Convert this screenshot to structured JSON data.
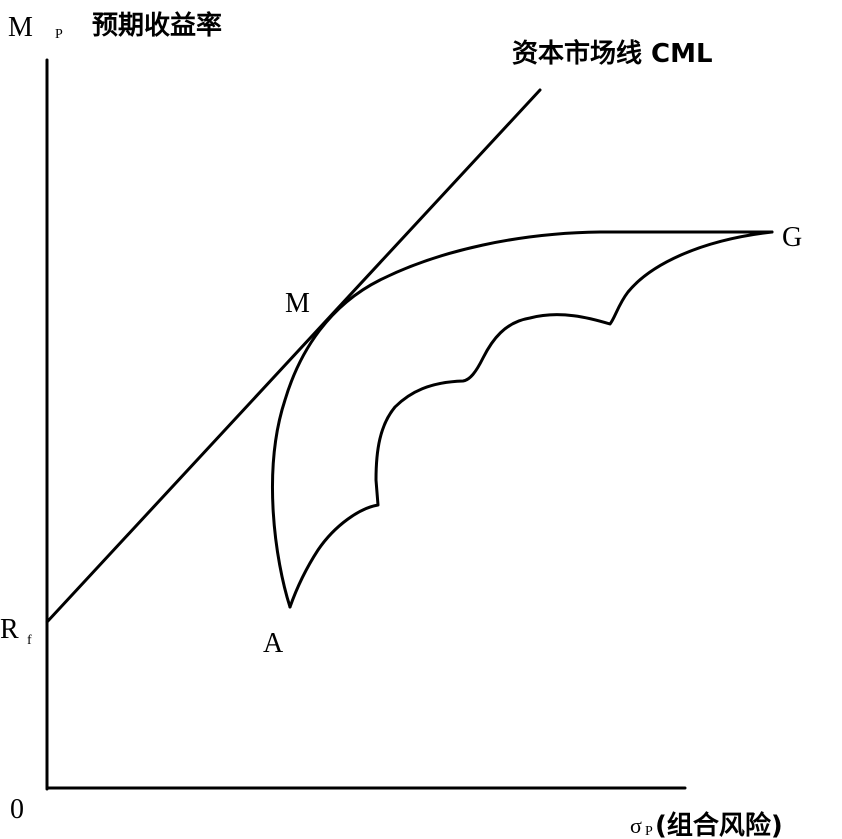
{
  "y_axis": {
    "symbol": "M",
    "subscript": "P",
    "label": "预期收益率"
  },
  "x_axis": {
    "symbol": "σ",
    "subscript": "P",
    "label": "(组合风险)"
  },
  "origin": "0",
  "cml_label": "资本市场线 CML",
  "points": {
    "G": "G",
    "M": "M",
    "A": "A",
    "Rf": {
      "symbol": "R",
      "subscript": "f"
    }
  }
}
